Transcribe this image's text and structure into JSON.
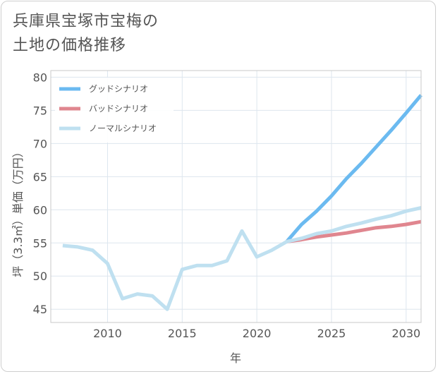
{
  "title_lines": [
    "兵庫県宝塚市宝梅の",
    "土地の価格推移"
  ],
  "chart_data": {
    "type": "line",
    "xlabel": "年",
    "ylabel": "坪（3.3㎡）単価（万円）",
    "xlim": [
      2006.2,
      2031
    ],
    "ylim": [
      43,
      81
    ],
    "xticks": [
      2010,
      2015,
      2020,
      2025,
      2030
    ],
    "yticks": [
      45,
      50,
      55,
      60,
      65,
      70,
      75,
      80
    ],
    "grid": true,
    "legend_position": "top-left",
    "series": [
      {
        "name": "グッドシナリオ",
        "color": "#6bbaf0",
        "x": [
          2022,
          2023,
          2024,
          2025,
          2026,
          2027,
          2028,
          2029,
          2030,
          2031
        ],
        "y": [
          55.2,
          57.8,
          59.8,
          62.1,
          64.7,
          67.0,
          69.5,
          72.0,
          74.6,
          77.3
        ]
      },
      {
        "name": "バッドシナリオ",
        "color": "#e0868f",
        "x": [
          2022,
          2023,
          2024,
          2025,
          2026,
          2027,
          2028,
          2029,
          2030,
          2031
        ],
        "y": [
          55.2,
          55.5,
          55.9,
          56.2,
          56.5,
          56.9,
          57.3,
          57.5,
          57.8,
          58.2
        ]
      },
      {
        "name": "ノーマルシナリオ",
        "color": "#bfe0f0",
        "x": [
          2007,
          2008,
          2009,
          2010,
          2011,
          2012,
          2013,
          2014,
          2015,
          2016,
          2017,
          2018,
          2019,
          2020,
          2021,
          2022,
          2023,
          2024,
          2025,
          2026,
          2027,
          2028,
          2029,
          2030,
          2031
        ],
        "y": [
          54.6,
          54.4,
          53.9,
          51.9,
          46.6,
          47.3,
          47.0,
          45.0,
          51.0,
          51.6,
          51.6,
          52.3,
          56.8,
          52.9,
          53.9,
          55.2,
          55.7,
          56.4,
          56.8,
          57.5,
          58.0,
          58.6,
          59.1,
          59.8,
          60.3
        ]
      }
    ]
  }
}
